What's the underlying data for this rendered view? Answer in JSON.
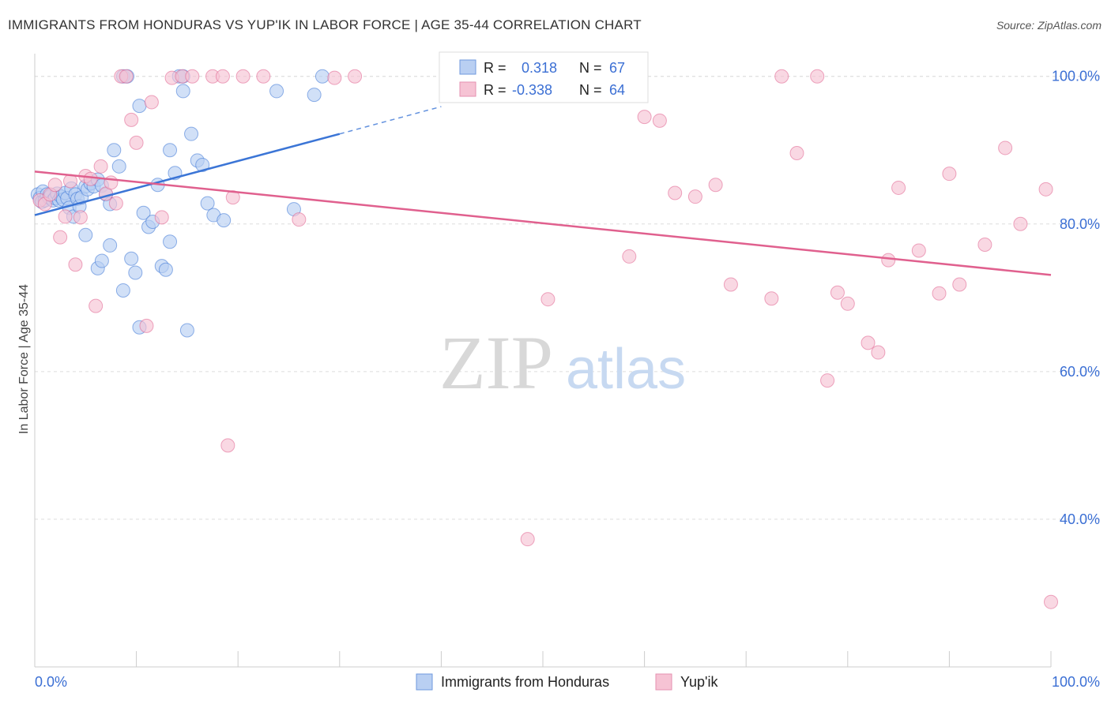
{
  "header": {
    "title": "IMMIGRANTS FROM HONDURAS VS YUP'IK IN LABOR FORCE | AGE 35-44 CORRELATION CHART",
    "source": "Source: ZipAtlas.com"
  },
  "watermark": {
    "part1": "ZIP",
    "part2": "atlas"
  },
  "colors": {
    "blue": "#3b75d6",
    "blue_fill": "#b9cff2",
    "pink": "#e0608e",
    "pink_fill": "#f6c3d4",
    "axis_text": "#3b6fd4",
    "grid": "#dddddd"
  },
  "stats_box": {
    "rows": [
      {
        "r_label": "R =",
        "r_value": "0.318",
        "n_label": "N =",
        "n_value": "67"
      },
      {
        "r_label": "R =",
        "r_value": "-0.338",
        "n_label": "N =",
        "n_value": "64"
      }
    ]
  },
  "chart_data": {
    "type": "scatter",
    "title": "IMMIGRANTS FROM HONDURAS VS YUP'IK IN LABOR FORCE | AGE 35-44 CORRELATION CHART",
    "xlabel": "",
    "ylabel": "In Labor Force | Age 35-44",
    "xlim": [
      0,
      100
    ],
    "ylim": [
      20,
      102
    ],
    "x_tick_labels": [
      "0.0%",
      "100.0%"
    ],
    "y_ticks": [
      40,
      60,
      80,
      100
    ],
    "y_tick_labels": [
      "40.0%",
      "60.0%",
      "80.0%",
      "100.0%"
    ],
    "grid": true,
    "legend": [
      "Immigrants from Honduras",
      "Yup'ik"
    ],
    "series": [
      {
        "name": "Immigrants from Honduras",
        "color": "#3b75d6",
        "fill": "#b9cff2",
        "trend": {
          "x0": 0,
          "y0": 81.2,
          "x1": 30,
          "y1": 92.2,
          "dash_to_x": 40,
          "dash_to_y": 95.9
        },
        "points": [
          [
            0.3,
            84.0
          ],
          [
            0.5,
            83.5
          ],
          [
            0.7,
            83.0
          ],
          [
            0.8,
            84.4
          ],
          [
            1.0,
            83.2
          ],
          [
            1.2,
            84.0
          ],
          [
            1.4,
            83.6
          ],
          [
            1.6,
            83.9
          ],
          [
            1.8,
            83.2
          ],
          [
            2.0,
            83.5
          ],
          [
            2.2,
            84.1
          ],
          [
            2.4,
            83.2
          ],
          [
            2.6,
            83.7
          ],
          [
            2.8,
            83.3
          ],
          [
            3.0,
            84.2
          ],
          [
            3.2,
            83.5
          ],
          [
            3.4,
            82.2
          ],
          [
            3.6,
            84.8
          ],
          [
            3.8,
            81.0
          ],
          [
            4.0,
            84.0
          ],
          [
            4.2,
            83.4
          ],
          [
            4.4,
            82.4
          ],
          [
            4.6,
            83.6
          ],
          [
            5.0,
            85.1
          ],
          [
            5.2,
            84.7
          ],
          [
            5.5,
            85.5
          ],
          [
            5.8,
            85.1
          ],
          [
            6.2,
            86.0
          ],
          [
            6.6,
            85.2
          ],
          [
            7.0,
            84.0
          ],
          [
            7.4,
            82.7
          ],
          [
            7.8,
            90.0
          ],
          [
            8.3,
            87.8
          ],
          [
            8.7,
            100.0
          ],
          [
            9.1,
            100.0
          ],
          [
            9.5,
            75.3
          ],
          [
            9.9,
            73.4
          ],
          [
            10.3,
            96.0
          ],
          [
            10.7,
            81.5
          ],
          [
            11.2,
            79.6
          ],
          [
            11.6,
            80.3
          ],
          [
            12.1,
            85.3
          ],
          [
            12.5,
            74.3
          ],
          [
            12.9,
            73.8
          ],
          [
            13.3,
            77.6
          ],
          [
            13.8,
            86.9
          ],
          [
            14.2,
            100.0
          ],
          [
            14.6,
            98.0
          ],
          [
            15.0,
            65.6
          ],
          [
            15.4,
            92.2
          ],
          [
            16.0,
            88.6
          ],
          [
            16.5,
            88.0
          ],
          [
            17.0,
            82.8
          ],
          [
            17.6,
            81.2
          ],
          [
            18.6,
            80.5
          ],
          [
            7.4,
            77.1
          ],
          [
            6.2,
            74.0
          ],
          [
            5.0,
            78.5
          ],
          [
            6.6,
            75.0
          ],
          [
            8.7,
            71.0
          ],
          [
            10.3,
            66.0
          ],
          [
            13.3,
            90.0
          ],
          [
            23.8,
            98.0
          ],
          [
            25.5,
            82.0
          ],
          [
            27.5,
            97.5
          ],
          [
            28.3,
            100.0
          ],
          [
            14.6,
            100.0
          ]
        ]
      },
      {
        "name": "Yup'ik",
        "color": "#e0608e",
        "fill": "#f6c3d4",
        "trend": {
          "x0": 0,
          "y0": 87.1,
          "x1": 100,
          "y1": 73.1
        },
        "points": [
          [
            0.5,
            83.2
          ],
          [
            1.0,
            82.7
          ],
          [
            1.5,
            84.0
          ],
          [
            2.0,
            85.3
          ],
          [
            2.5,
            78.2
          ],
          [
            3.0,
            81.0
          ],
          [
            3.5,
            85.8
          ],
          [
            4.0,
            74.5
          ],
          [
            4.5,
            80.9
          ],
          [
            5.0,
            86.5
          ],
          [
            5.5,
            86.1
          ],
          [
            6.0,
            68.9
          ],
          [
            6.5,
            87.8
          ],
          [
            7.0,
            84.1
          ],
          [
            7.5,
            85.6
          ],
          [
            8.0,
            82.8
          ],
          [
            8.5,
            100.0
          ],
          [
            9.0,
            100.0
          ],
          [
            9.5,
            94.1
          ],
          [
            10.0,
            91.0
          ],
          [
            11.0,
            66.2
          ],
          [
            11.5,
            96.5
          ],
          [
            12.5,
            80.9
          ],
          [
            13.5,
            99.8
          ],
          [
            14.5,
            100.0
          ],
          [
            15.5,
            100.0
          ],
          [
            17.5,
            100.0
          ],
          [
            18.5,
            100.0
          ],
          [
            19.0,
            50.0
          ],
          [
            19.5,
            83.6
          ],
          [
            20.5,
            100.0
          ],
          [
            22.5,
            100.0
          ],
          [
            26.0,
            80.6
          ],
          [
            29.5,
            99.8
          ],
          [
            31.5,
            100.0
          ],
          [
            48.5,
            37.3
          ],
          [
            50.5,
            69.8
          ],
          [
            58.5,
            75.6
          ],
          [
            60.0,
            94.5
          ],
          [
            61.5,
            94.0
          ],
          [
            63.0,
            84.2
          ],
          [
            65.0,
            83.7
          ],
          [
            67.0,
            85.3
          ],
          [
            68.5,
            71.8
          ],
          [
            73.5,
            100.0
          ],
          [
            72.5,
            69.9
          ],
          [
            75.0,
            89.6
          ],
          [
            77.0,
            100.0
          ],
          [
            78.0,
            58.8
          ],
          [
            79.0,
            70.7
          ],
          [
            80.0,
            69.2
          ],
          [
            82.0,
            63.9
          ],
          [
            83.0,
            62.6
          ],
          [
            84.0,
            75.1
          ],
          [
            85.0,
            84.9
          ],
          [
            87.0,
            76.4
          ],
          [
            89.0,
            70.6
          ],
          [
            90.0,
            86.8
          ],
          [
            91.0,
            71.8
          ],
          [
            93.5,
            77.2
          ],
          [
            95.5,
            90.3
          ],
          [
            97.0,
            80.0
          ],
          [
            99.5,
            84.7
          ],
          [
            100.0,
            28.8
          ]
        ]
      }
    ]
  }
}
